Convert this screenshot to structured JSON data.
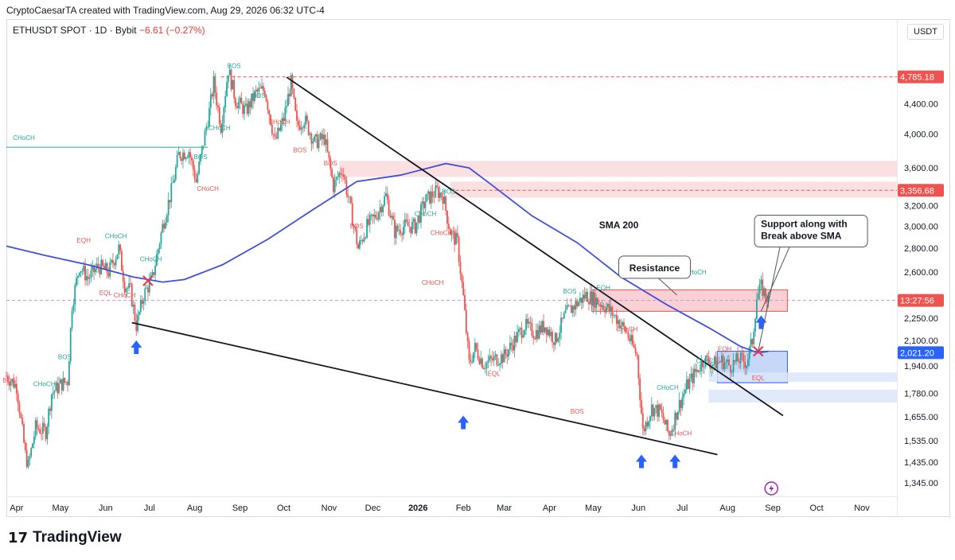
{
  "header": {
    "attribution": "CryptoCaesarTA created with TradingView.com, Aug 29, 2026 06:32 UTC-4"
  },
  "symbol": {
    "title": "ETHUSDT SPOT · 1D · Bybit",
    "change": "−6.61 (−0.27%)",
    "currency": "USDT"
  },
  "brand": {
    "logo_mark": "17",
    "logo_text": "TradingView"
  },
  "colors": {
    "bull": "#26a69a",
    "bear": "#ef5350",
    "sma": "#3f51d6",
    "resistance_zone": "#f8c9cc",
    "support_zone": "#c9d9f6",
    "arrow": "#2962ff"
  },
  "chart_data": {
    "type": "candlestick",
    "title": "ETHUSDT SPOT · 1D · Bybit",
    "y_scale": "log",
    "ylim": [
      1290,
      5400
    ],
    "x_range": [
      "Mar 25 2025",
      "Nov 25 2026"
    ],
    "grid": false,
    "yticks": [
      "4,400.00",
      "4,000.00",
      "3,600.00",
      "3,200.00",
      "3,000.00",
      "2,800.00",
      "2,600.00",
      "2,250.00",
      "2,100.00",
      "1,940.00",
      "1,780.00",
      "1,655.00",
      "1,535.00",
      "1,435.00",
      "1,345.00"
    ],
    "xticks": [
      "Apr",
      "May",
      "Jun",
      "Jul",
      "Aug",
      "Sep",
      "Oct",
      "Nov",
      "Dec",
      "2026",
      "Feb",
      "Mar",
      "Apr",
      "May",
      "Jun",
      "Jul",
      "Aug",
      "Sep",
      "Oct",
      "Nov"
    ],
    "price_labels": [
      {
        "label": "4,785.18",
        "value": 4785.18,
        "color": "#ef5350"
      },
      {
        "label": "3,356.68",
        "value": 3356.68,
        "color": "#ef5350"
      },
      {
        "label": "13:27:56",
        "value": 2380,
        "color": "#ef5350"
      },
      {
        "label": "2,021.20",
        "value": 2021.2,
        "color": "#2962ff"
      }
    ],
    "price_path": [
      [
        "2025-03-25",
        1880
      ],
      [
        "2025-04-01",
        1820
      ],
      [
        "2025-04-07",
        1470
      ],
      [
        "2025-04-09",
        1420
      ],
      [
        "2025-04-14",
        1600
      ],
      [
        "2025-04-21",
        1580
      ],
      [
        "2025-04-25",
        1780
      ],
      [
        "2025-05-01",
        1830
      ],
      [
        "2025-05-06",
        1850
      ],
      [
        "2025-05-09",
        2350
      ],
      [
        "2025-05-14",
        2650
      ],
      [
        "2025-05-20",
        2550
      ],
      [
        "2025-05-27",
        2650
      ],
      [
        "2025-06-03",
        2600
      ],
      [
        "2025-06-10",
        2800
      ],
      [
        "2025-06-14",
        2500
      ],
      [
        "2025-06-18",
        2450
      ],
      [
        "2025-06-22",
        2200
      ],
      [
        "2025-06-27",
        2420
      ],
      [
        "2025-07-03",
        2550
      ],
      [
        "2025-07-10",
        3000
      ],
      [
        "2025-07-16",
        3350
      ],
      [
        "2025-07-21",
        3750
      ],
      [
        "2025-07-28",
        3800
      ],
      [
        "2025-08-02",
        3450
      ],
      [
        "2025-08-07",
        3900
      ],
      [
        "2025-08-11",
        4300
      ],
      [
        "2025-08-14",
        4700
      ],
      [
        "2025-08-19",
        4100
      ],
      [
        "2025-08-24",
        4900
      ],
      [
        "2025-08-29",
        4450
      ],
      [
        "2025-09-05",
        4300
      ],
      [
        "2025-09-12",
        4550
      ],
      [
        "2025-09-18",
        4600
      ],
      [
        "2025-09-25",
        3900
      ],
      [
        "2025-10-01",
        4200
      ],
      [
        "2025-10-06",
        4700
      ],
      [
        "2025-10-10",
        4100
      ],
      [
        "2025-10-15",
        4200
      ],
      [
        "2025-10-22",
        3900
      ],
      [
        "2025-10-29",
        3950
      ],
      [
        "2025-11-04",
        3400
      ],
      [
        "2025-11-10",
        3600
      ],
      [
        "2025-11-16",
        3150
      ],
      [
        "2025-11-21",
        2800
      ],
      [
        "2025-11-27",
        3000
      ],
      [
        "2025-12-03",
        3100
      ],
      [
        "2025-12-10",
        3300
      ],
      [
        "2025-12-16",
        2950
      ],
      [
        "2025-12-22",
        3000
      ],
      [
        "2025-12-30",
        3000
      ],
      [
        "2026-01-06",
        3250
      ],
      [
        "2026-01-14",
        3350
      ],
      [
        "2026-01-18",
        3300
      ],
      [
        "2026-01-23",
        2950
      ],
      [
        "2026-01-28",
        2850
      ],
      [
        "2026-02-01",
        2400
      ],
      [
        "2026-02-05",
        1950
      ],
      [
        "2026-02-09",
        2050
      ],
      [
        "2026-02-15",
        1950
      ],
      [
        "2026-02-22",
        1980
      ],
      [
        "2026-03-01",
        2000
      ],
      [
        "2026-03-08",
        2100
      ],
      [
        "2026-03-15",
        2200
      ],
      [
        "2026-03-22",
        2150
      ],
      [
        "2026-03-29",
        2200
      ],
      [
        "2026-04-05",
        2100
      ],
      [
        "2026-04-12",
        2280
      ],
      [
        "2026-04-19",
        2350
      ],
      [
        "2026-04-26",
        2420
      ],
      [
        "2026-05-03",
        2380
      ],
      [
        "2026-05-10",
        2330
      ],
      [
        "2026-05-17",
        2250
      ],
      [
        "2026-05-24",
        2150
      ],
      [
        "2026-05-31",
        2000
      ],
      [
        "2026-06-04",
        1580
      ],
      [
        "2026-06-10",
        1700
      ],
      [
        "2026-06-16",
        1680
      ],
      [
        "2026-06-22",
        1560
      ],
      [
        "2026-06-28",
        1700
      ],
      [
        "2026-07-04",
        1820
      ],
      [
        "2026-07-10",
        1900
      ],
      [
        "2026-07-16",
        1980
      ],
      [
        "2026-07-22",
        1950
      ],
      [
        "2026-07-28",
        1970
      ],
      [
        "2026-08-03",
        1940
      ],
      [
        "2026-08-09",
        1980
      ],
      [
        "2026-08-14",
        1960
      ],
      [
        "2026-08-18",
        2100
      ],
      [
        "2026-08-21",
        2400
      ],
      [
        "2026-08-24",
        2480
      ],
      [
        "2026-08-29",
        2380
      ]
    ],
    "sma_200": [
      [
        "2025-03-25",
        2820
      ],
      [
        "2025-04-20",
        2740
      ],
      [
        "2025-05-20",
        2660
      ],
      [
        "2025-06-20",
        2560
      ],
      [
        "2025-07-10",
        2520
      ],
      [
        "2025-07-25",
        2540
      ],
      [
        "2025-08-20",
        2660
      ],
      [
        "2025-09-20",
        2880
      ],
      [
        "2025-10-20",
        3150
      ],
      [
        "2025-11-20",
        3450
      ],
      [
        "2025-12-20",
        3520
      ],
      [
        "2026-01-20",
        3650
      ],
      [
        "2026-02-05",
        3600
      ],
      [
        "2026-02-20",
        3420
      ],
      [
        "2026-03-20",
        3100
      ],
      [
        "2026-04-20",
        2850
      ],
      [
        "2026-05-20",
        2560
      ],
      [
        "2026-06-20",
        2350
      ],
      [
        "2026-07-20",
        2180
      ],
      [
        "2026-08-10",
        2060
      ],
      [
        "2026-08-22",
        2020
      ],
      [
        "2026-08-29",
        2030
      ]
    ],
    "trendlines": [
      {
        "label": "descending resistance",
        "from": [
          "2025-10-03",
          4780
        ],
        "to": [
          "2026-09-08",
          1660
        ]
      },
      {
        "label": "lower support",
        "from": [
          "2025-06-19",
          2220
        ],
        "to": [
          "2026-07-25",
          1470
        ]
      }
    ],
    "zones": [
      {
        "label": "upper supply zone",
        "from": "2025-11-08",
        "to": "2026-11-25",
        "low": 3500,
        "high": 3680,
        "color": "#fadbdc"
      },
      {
        "label": "",
        "from": "2026-01-23",
        "to": "2026-11-25",
        "low": 3280,
        "high": 3450,
        "color": "#fadbdc"
      },
      {
        "label": "Resistance",
        "from": "2026-04-30",
        "to": "2026-09-11",
        "low": 2300,
        "high": 2460,
        "color": "#f8c9cc"
      },
      {
        "label": "support box",
        "from": "2026-07-25",
        "to": "2026-09-11",
        "low": 1840,
        "high": 2030,
        "color": "#bcd0f6"
      },
      {
        "label": "",
        "from": "2026-07-19",
        "to": "2026-11-25",
        "low": 1845,
        "high": 1900,
        "color": "#dbe6fb"
      },
      {
        "label": "",
        "from": "2026-07-19",
        "to": "2026-11-25",
        "low": 1730,
        "high": 1800,
        "color": "#dbe6fb"
      }
    ],
    "hlines": [
      {
        "value": 4785.18,
        "from": "2025-08-19",
        "to": "2026-11-25",
        "color": "#ef5350",
        "dashed": true
      },
      {
        "value": 3356.68,
        "from": "2026-01-23",
        "to": "2026-11-25",
        "color": "#ef5350",
        "dashed": true
      },
      {
        "value": 2380,
        "from": "2025-03-25",
        "to": "2026-11-25",
        "color": "#ce93d8",
        "dashed": true
      },
      {
        "value": 3840,
        "from": "2025-03-25",
        "to": "2025-08-10",
        "color": "#26a69a",
        "dashed": false
      }
    ],
    "structure_labels": [
      {
        "text": "CHoCH",
        "date": "2025-04-06",
        "price": 3930,
        "color": "#26a69a"
      },
      {
        "text": "EQH",
        "date": "2025-05-17",
        "price": 2850,
        "color": "#ef5350"
      },
      {
        "text": "CHoCH",
        "date": "2025-06-08",
        "price": 2890,
        "color": "#26a69a"
      },
      {
        "text": "EQL",
        "date": "2025-06-01",
        "price": 2420,
        "color": "#ef5350"
      },
      {
        "text": "CHoCH",
        "date": "2025-06-14",
        "price": 2400,
        "color": "#ef5350"
      },
      {
        "text": "CHoCH",
        "date": "2025-07-02",
        "price": 2690,
        "color": "#26a69a"
      },
      {
        "text": "BOS",
        "date": "2025-08-05",
        "price": 3700,
        "color": "#26a69a"
      },
      {
        "text": "CHoCH",
        "date": "2025-08-10",
        "price": 3350,
        "color": "#ef5350"
      },
      {
        "text": "CHoCH",
        "date": "2025-08-18",
        "price": 4050,
        "color": "#26a69a"
      },
      {
        "text": "BOS",
        "date": "2025-08-28",
        "price": 4920,
        "color": "#26a69a"
      },
      {
        "text": "BOS",
        "date": "2025-09-14",
        "price": 4480,
        "color": "#26a69a"
      },
      {
        "text": "CHoCH",
        "date": "2025-09-28",
        "price": 4130,
        "color": "#ef5350"
      },
      {
        "text": "BOS",
        "date": "2025-10-12",
        "price": 3780,
        "color": "#ef5350"
      },
      {
        "text": "BOS",
        "date": "2025-11-02",
        "price": 3630,
        "color": "#ef5350"
      },
      {
        "text": "BOS",
        "date": "2025-11-20",
        "price": 2980,
        "color": "#ef5350"
      },
      {
        "text": "CHoCH",
        "date": "2026-01-06",
        "price": 3100,
        "color": "#26a69a"
      },
      {
        "text": "CHoCH",
        "date": "2026-01-17",
        "price": 2920,
        "color": "#ef5350"
      },
      {
        "text": "BOS",
        "date": "2026-01-22",
        "price": 3320,
        "color": "#26a69a"
      },
      {
        "text": "CHoCH",
        "date": "2026-01-11",
        "price": 2500,
        "color": "#ef5350"
      },
      {
        "text": "EQL",
        "date": "2026-02-22",
        "price": 1880,
        "color": "#ef5350"
      },
      {
        "text": "BOS",
        "date": "2026-04-15",
        "price": 2430,
        "color": "#26a69a"
      },
      {
        "text": "EQH",
        "date": "2026-05-08",
        "price": 2460,
        "color": "#26a69a"
      },
      {
        "text": "CHoCH",
        "date": "2026-05-24",
        "price": 2160,
        "color": "#ef5350"
      },
      {
        "text": "BOS",
        "date": "2026-04-20",
        "price": 1670,
        "color": "#ef5350"
      },
      {
        "text": "CHoCH",
        "date": "2026-06-21",
        "price": 1800,
        "color": "#26a69a"
      },
      {
        "text": "CHoCH",
        "date": "2026-06-30",
        "price": 1560,
        "color": "#ef5350"
      },
      {
        "text": "CHoCH",
        "date": "2026-07-18",
        "price": 1955,
        "color": "#26a69a"
      },
      {
        "text": "EQH",
        "date": "2026-07-30",
        "price": 2030,
        "color": "#ef5350"
      },
      {
        "text": "CHoCH",
        "date": "2026-07-10",
        "price": 2580,
        "color": "#26a69a"
      },
      {
        "text": "EQL",
        "date": "2026-08-22",
        "price": 1855,
        "color": "#ef5350"
      },
      {
        "text": "BOS",
        "date": "2025-03-27",
        "price": 1840,
        "color": "#ef5350"
      },
      {
        "text": "BOS",
        "date": "2025-05-04",
        "price": 1980,
        "color": "#26a69a"
      },
      {
        "text": "CHoCH",
        "date": "2025-04-20",
        "price": 1820,
        "color": "#26a69a"
      }
    ],
    "annotations": [
      {
        "text": "SMA 200",
        "date": "2026-05-05",
        "price": 2980
      },
      {
        "text": "Resistance",
        "date": "2026-06-12",
        "price": 2640,
        "boxed": true
      },
      {
        "text": "Support along with",
        "date": "2026-08-26",
        "price": 3000,
        "boxed": true
      },
      {
        "text": "Break above SMA",
        "date": "2026-08-26",
        "price": 2860
      }
    ],
    "arrows": [
      {
        "date": "2025-06-22",
        "price": 2100
      },
      {
        "date": "2026-02-01",
        "price": 1660
      },
      {
        "date": "2026-06-03",
        "price": 1470
      },
      {
        "date": "2026-06-26",
        "price": 1470
      },
      {
        "date": "2026-08-24",
        "price": 2270
      }
    ],
    "crosses": [
      {
        "date": "2025-06-30",
        "price": 2530
      },
      {
        "date": "2026-08-22",
        "price": 2030
      }
    ],
    "small_labels": [
      {
        "text": "CHoCH",
        "date": "2025-04-02",
        "price": 3930
      },
      {
        "text": "BOS",
        "date": "2026-04-20",
        "price": 1670
      }
    ]
  }
}
